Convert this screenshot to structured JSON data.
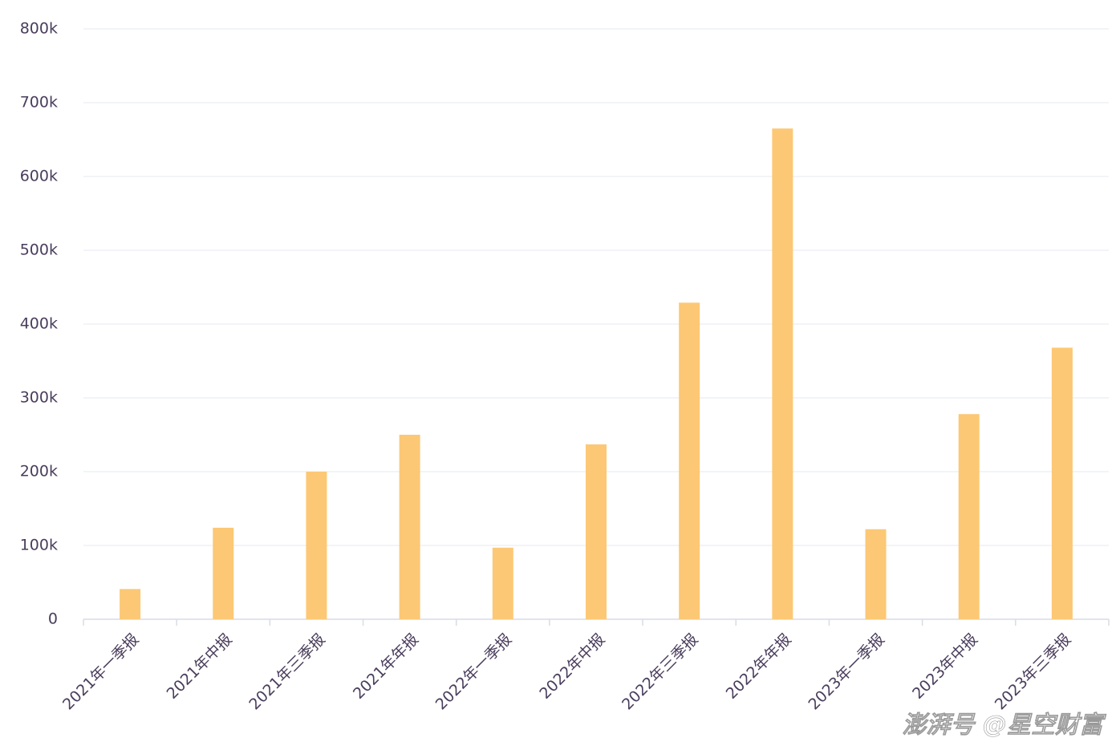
{
  "chart_data": {
    "type": "bar",
    "categories": [
      "2021年一季报",
      "2021年中报",
      "2021年三季报",
      "2021年年报",
      "2022年一季报",
      "2022年中报",
      "2022年三季报",
      "2022年年报",
      "2023年一季报",
      "2023年中报",
      "2023年三季报"
    ],
    "values": [
      41000,
      124000,
      200000,
      250000,
      97000,
      237000,
      429000,
      665000,
      122000,
      278000,
      368000
    ],
    "color": "#fcc875",
    "ylim": [
      0,
      800000
    ],
    "yticks": [
      0,
      {
        "value": 100000,
        "label": "100k"
      },
      {
        "value": 200000,
        "label": "200k"
      },
      {
        "value": 300000,
        "label": "300k"
      },
      {
        "value": 400000,
        "label": "400k"
      },
      {
        "value": 500000,
        "label": "500k"
      },
      {
        "value": 600000,
        "label": "600k"
      },
      {
        "value": 700000,
        "label": "700k"
      },
      {
        "value": 800000,
        "label": "800k"
      }
    ],
    "grid": true,
    "watermark": "澎湃号 @星空财富"
  }
}
